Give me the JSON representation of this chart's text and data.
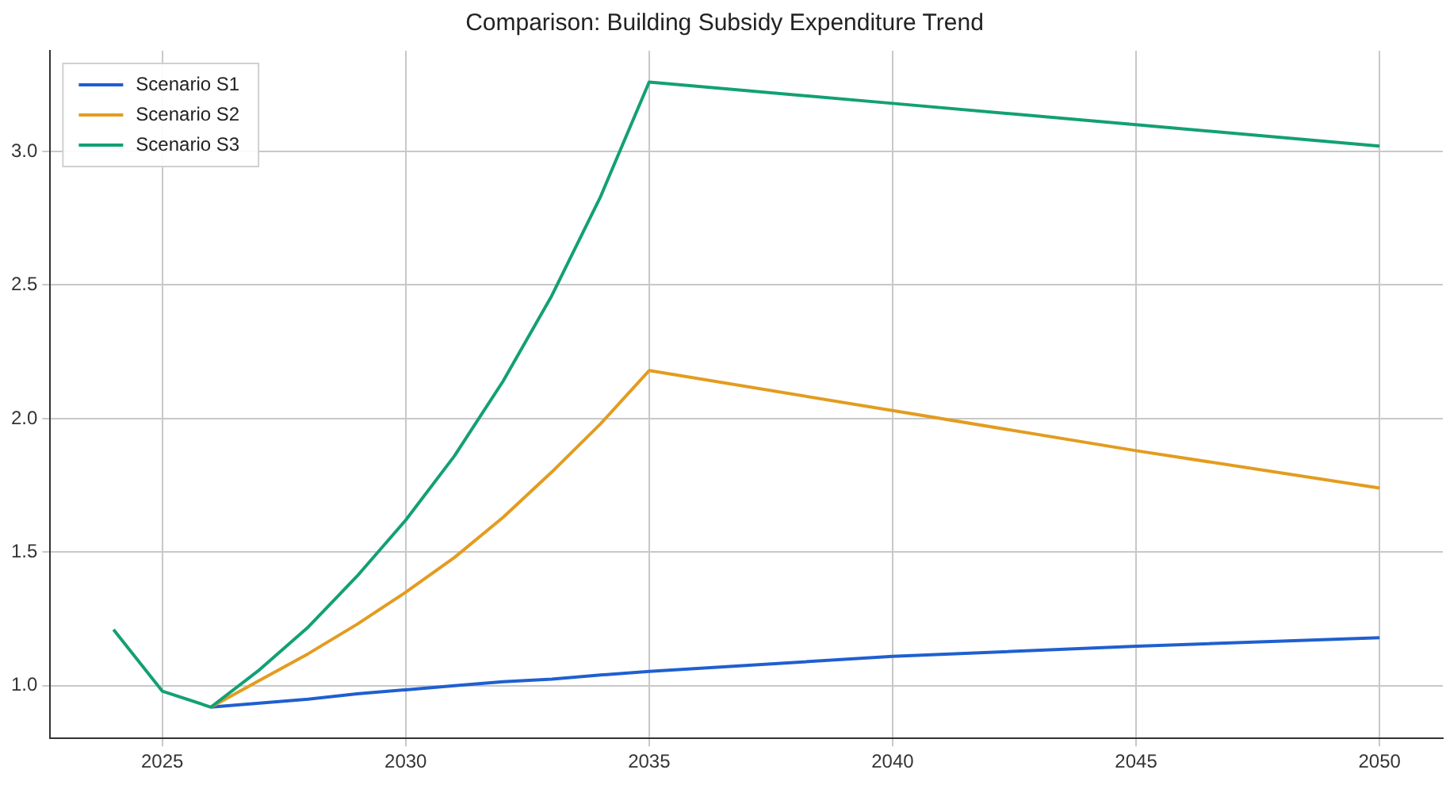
{
  "chart_data": {
    "type": "line",
    "title": "Comparison: Building Subsidy Expenditure Trend",
    "x": [
      2024,
      2025,
      2026,
      2027,
      2028,
      2029,
      2030,
      2031,
      2032,
      2033,
      2034,
      2035,
      2040,
      2045,
      2050
    ],
    "series": [
      {
        "name": "Scenario S1",
        "color": "#1f5fd0",
        "values": [
          null,
          null,
          0.92,
          0.935,
          0.95,
          0.97,
          0.985,
          1.0,
          1.015,
          1.025,
          1.04,
          1.054,
          1.11,
          1.148,
          1.18
        ]
      },
      {
        "name": "Scenario S2",
        "color": "#e39c1f",
        "values": [
          null,
          null,
          0.92,
          1.02,
          1.12,
          1.23,
          1.35,
          1.48,
          1.63,
          1.8,
          1.98,
          2.18,
          2.03,
          1.88,
          1.74
        ]
      },
      {
        "name": "Scenario S3",
        "color": "#13a074",
        "values": [
          1.21,
          0.98,
          0.92,
          1.06,
          1.22,
          1.41,
          1.62,
          1.86,
          2.14,
          2.46,
          2.83,
          3.26,
          3.18,
          3.1,
          3.02
        ]
      }
    ],
    "xlim": [
      2022.7,
      2051.3
    ],
    "xticks": [
      2025,
      2030,
      2035,
      2040,
      2045,
      2050
    ],
    "ylim": [
      0.803,
      3.377
    ],
    "yticks": [
      {
        "value": 1.0,
        "label": "1.0"
      },
      {
        "value": 1.5,
        "label": "1.5"
      },
      {
        "value": 2.0,
        "label": "2.0"
      },
      {
        "value": 2.5,
        "label": "2.5"
      },
      {
        "value": 3.0,
        "label": "3.0"
      }
    ],
    "grid": true,
    "legend": "top left",
    "marker": "none",
    "line_style": "solid"
  }
}
